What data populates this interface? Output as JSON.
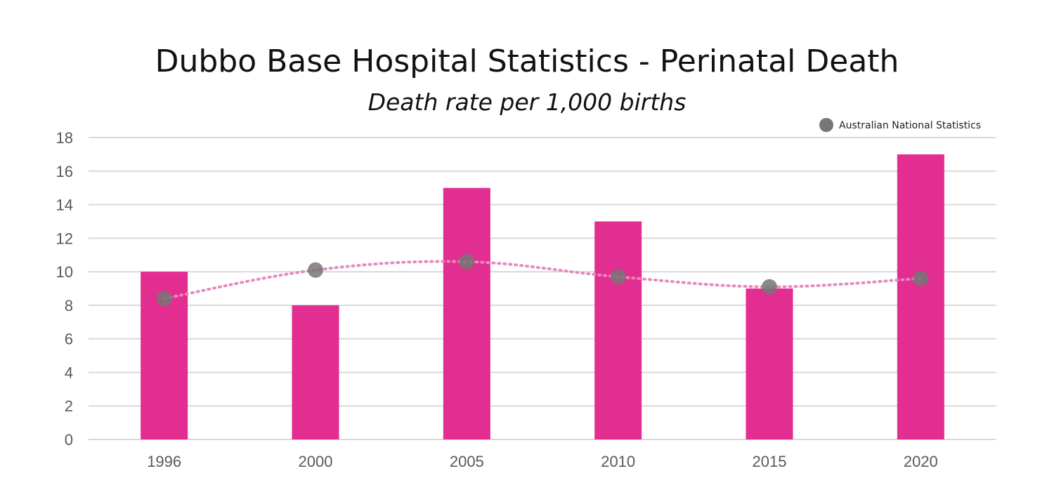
{
  "chart_data": {
    "type": "bar",
    "title": "Dubbo Base Hospital Statistics - Perinatal Death",
    "subtitle": "Death rate per 1,000 births",
    "categories": [
      "1996",
      "2000",
      "2005",
      "2010",
      "2015",
      "2020"
    ],
    "series": [
      {
        "name": "Dubbo Base Hospital",
        "type": "bar",
        "values": [
          10,
          8,
          15,
          13,
          9,
          17
        ],
        "color": "#E22D91"
      },
      {
        "name": "Australian National Statistics",
        "type": "line",
        "style": "dotted",
        "values": [
          8.4,
          10.1,
          10.6,
          9.7,
          9.1,
          9.6
        ],
        "line_color": "#E58BBE",
        "marker_color": "#767676"
      }
    ],
    "y_ticks": [
      0,
      2,
      4,
      6,
      8,
      10,
      12,
      14,
      16,
      18
    ],
    "ylim": [
      0,
      18
    ],
    "grid": true,
    "xlabel": "",
    "ylabel": "",
    "legend": {
      "position": "top-right",
      "entries": [
        "Australian National Statistics"
      ]
    },
    "colors": {
      "grid": "#D9D9D9",
      "axis_text": "#595959"
    }
  }
}
